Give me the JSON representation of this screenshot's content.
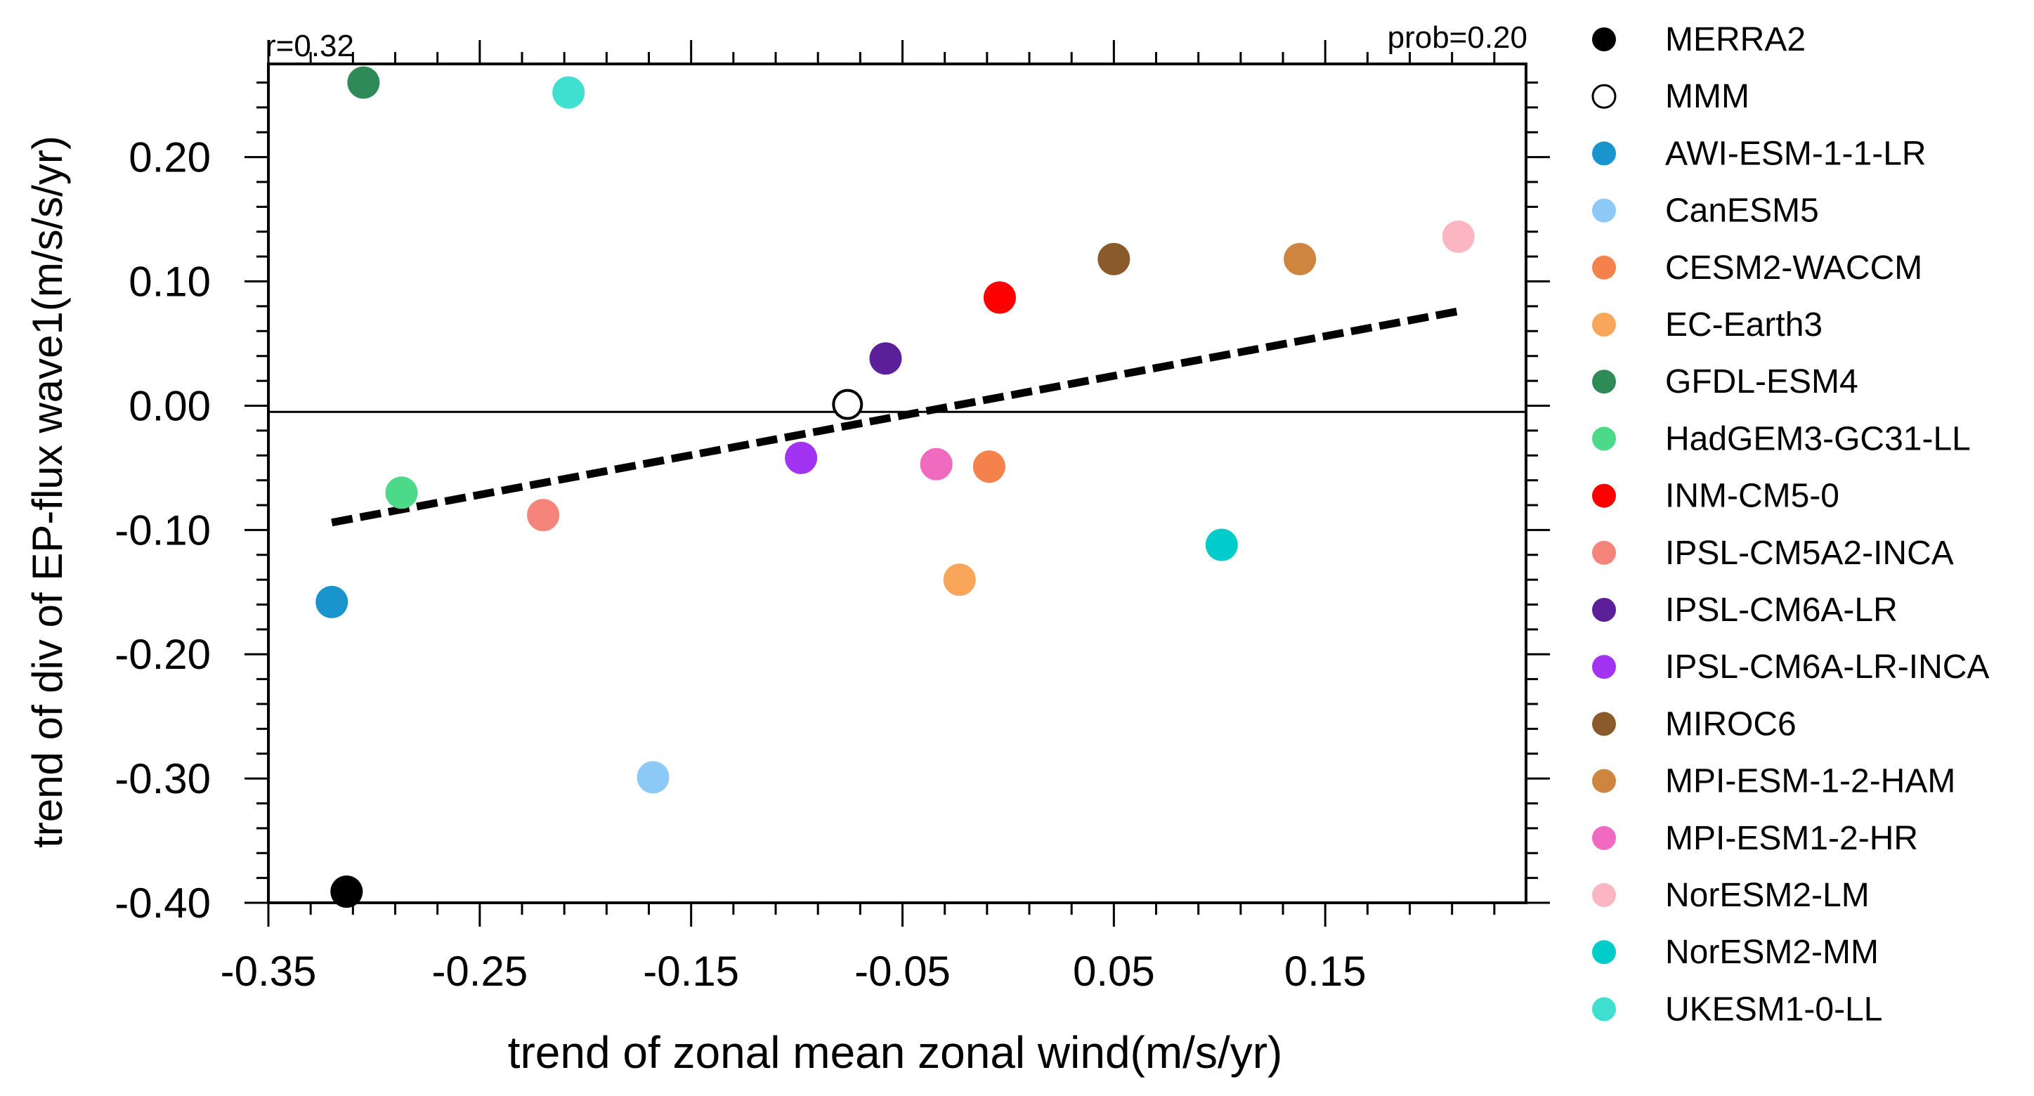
{
  "chart_data": {
    "type": "scatter",
    "xlabel": "trend of zonal mean zonal wind(m/s/yr)",
    "ylabel": "trend of div of EP-flux wave1(m/s/s/yr)",
    "annotations": {
      "r": "r=0.32",
      "prob": "prob=0.20"
    },
    "xlim": [
      -0.35,
      0.245
    ],
    "ylim": [
      -0.4,
      0.275
    ],
    "x_ticks": [
      -0.35,
      -0.25,
      -0.15,
      -0.05,
      0.05,
      0.15
    ],
    "x_tick_labels": [
      "-0.35",
      "-0.25",
      "-0.15",
      "-0.05",
      "0.05",
      "0.15"
    ],
    "y_ticks": [
      -0.4,
      -0.3,
      -0.2,
      -0.1,
      0.0,
      0.1,
      0.2
    ],
    "y_tick_labels": [
      "-0.40",
      "-0.30",
      "-0.20",
      "-0.10",
      "0.00",
      "0.10",
      "0.20"
    ],
    "zero_line_y": -0.005,
    "regression_line": {
      "x": [
        -0.32,
        0.213
      ],
      "y": [
        -0.094,
        0.076
      ]
    },
    "series": [
      {
        "name": "MERRA2",
        "x": -0.313,
        "y": -0.391,
        "color": "#000000",
        "hollow": false
      },
      {
        "name": "MMM",
        "x": -0.076,
        "y": 0.001,
        "color": "#ffffff",
        "hollow": true
      },
      {
        "name": "AWI-ESM-1-1-LR",
        "x": -0.32,
        "y": -0.158,
        "color": "#1a94cc",
        "hollow": false
      },
      {
        "name": "CanESM5",
        "x": -0.168,
        "y": -0.299,
        "color": "#8cc9f7",
        "hollow": false
      },
      {
        "name": "CESM2-WACCM",
        "x": -0.009,
        "y": -0.049,
        "color": "#f5814c",
        "hollow": false
      },
      {
        "name": "EC-Earth3",
        "x": -0.023,
        "y": -0.14,
        "color": "#f9a65a",
        "hollow": false
      },
      {
        "name": "GFDL-ESM4",
        "x": -0.305,
        "y": 0.26,
        "color": "#2e8b57",
        "hollow": false
      },
      {
        "name": "HadGEM3-GC31-LL",
        "x": -0.287,
        "y": -0.07,
        "color": "#4cd989",
        "hollow": false
      },
      {
        "name": "INM-CM5-0",
        "x": -0.004,
        "y": 0.087,
        "color": "#ff0000",
        "hollow": false
      },
      {
        "name": "IPSL-CM5A2-INCA",
        "x": -0.22,
        "y": -0.088,
        "color": "#f5857a",
        "hollow": false
      },
      {
        "name": "IPSL-CM6A-LR",
        "x": -0.058,
        "y": 0.038,
        "color": "#5a1f99",
        "hollow": false
      },
      {
        "name": "IPSL-CM6A-LR-INCA",
        "x": -0.098,
        "y": -0.042,
        "color": "#a233f2",
        "hollow": false
      },
      {
        "name": "MIROC6",
        "x": 0.05,
        "y": 0.118,
        "color": "#8b5a2b",
        "hollow": false
      },
      {
        "name": "MPI-ESM-1-2-HAM",
        "x": 0.138,
        "y": 0.118,
        "color": "#cd853f",
        "hollow": false
      },
      {
        "name": "MPI-ESM1-2-HR",
        "x": -0.034,
        "y": -0.047,
        "color": "#f06bc0",
        "hollow": false
      },
      {
        "name": "NorESM2-LM",
        "x": 0.213,
        "y": 0.136,
        "color": "#fbb6c2",
        "hollow": false
      },
      {
        "name": "NorESM2-MM",
        "x": 0.101,
        "y": -0.112,
        "color": "#00cccc",
        "hollow": false
      },
      {
        "name": "UKESM1-0-LL",
        "x": -0.208,
        "y": 0.252,
        "color": "#40e0d0",
        "hollow": false
      }
    ]
  }
}
